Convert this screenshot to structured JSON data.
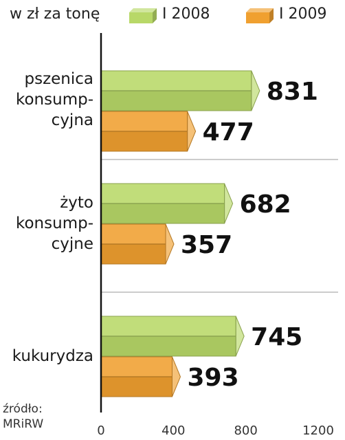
{
  "chart_data": {
    "type": "bar",
    "orientation": "horizontal",
    "unit_label": "w zł za tonę",
    "categories": [
      [
        "pszenica",
        "konsump-",
        "cyjna"
      ],
      [
        "żyto",
        "konsump-",
        "cyjne"
      ],
      [
        "kukurydza"
      ]
    ],
    "series": [
      {
        "name": "I 2008",
        "values": [
          831,
          682,
          745
        ],
        "color": "#b8d868"
      },
      {
        "name": "I 2009",
        "values": [
          477,
          357,
          393
        ],
        "color": "#f0a030"
      }
    ],
    "xlim": [
      0,
      1200
    ],
    "xticks": [
      0,
      400,
      800,
      1200
    ],
    "legend_position": "top",
    "source": [
      "źródło:",
      "MRiRW"
    ]
  }
}
